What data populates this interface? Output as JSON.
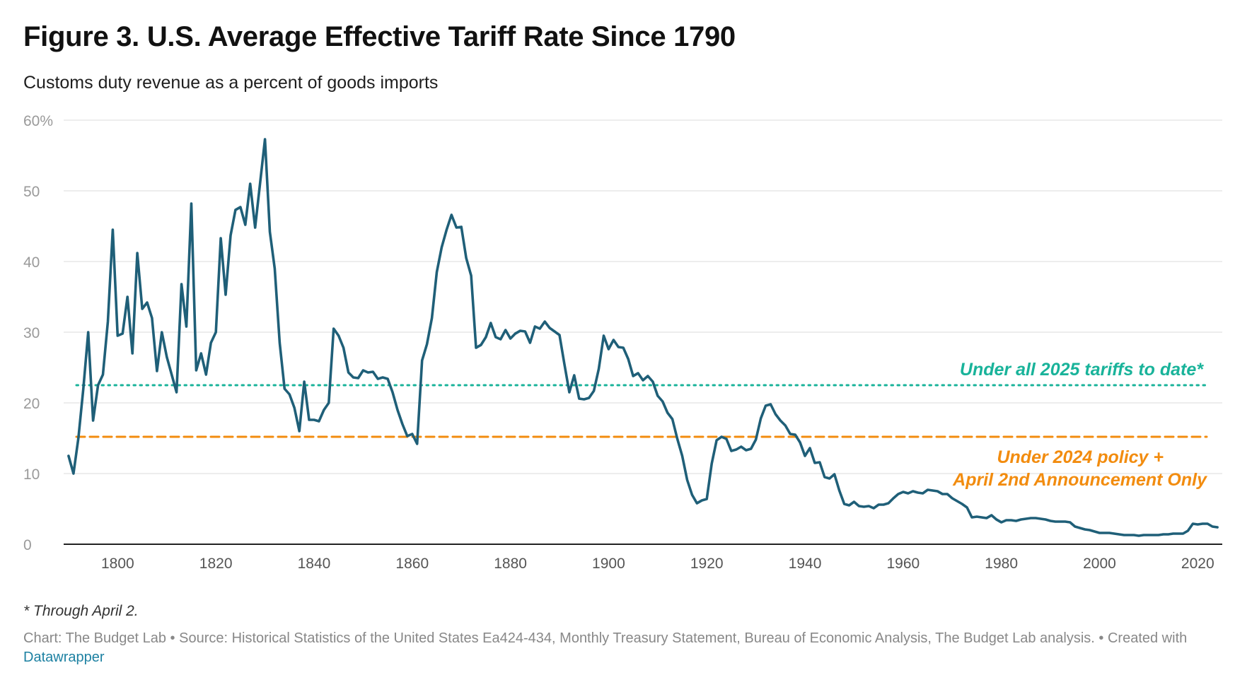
{
  "title": "Figure 3. U.S. Average Effective Tariff Rate Since 1790",
  "subtitle": "Customs duty revenue as a percent of goods imports",
  "note": "* Through April 2.",
  "credit": {
    "text": "Chart: The Budget Lab • Source: Historical Statistics of the United States Ea424-434, Monthly Treasury Statement, Bureau of Economic Analysis, The Budget Lab analysis. • Created with",
    "link": "Datawrapper"
  },
  "colors": {
    "line": "#1f5f78",
    "ref_2025": "#19b39a",
    "ref_2024": "#f28c0f",
    "grid": "#e2e2e2",
    "axis": "#222222"
  },
  "chart_data": {
    "type": "line",
    "xlabel": "",
    "ylabel": "",
    "xlim": [
      1789,
      2025
    ],
    "ylim": [
      0,
      60
    ],
    "x_ticks": [
      "1800",
      "1820",
      "1840",
      "1860",
      "1880",
      "1900",
      "1920",
      "1940",
      "1960",
      "1980",
      "2000",
      "2020"
    ],
    "y_ticks": [
      "0",
      "10",
      "20",
      "30",
      "40",
      "50",
      "60%"
    ],
    "grid": "horizontal",
    "series": [
      {
        "points": [
          [
            1790,
            12.5
          ],
          [
            1791,
            10
          ],
          [
            1792,
            15
          ],
          [
            1793,
            22
          ],
          [
            1794,
            30
          ],
          [
            1795,
            17.5
          ],
          [
            1796,
            22.5
          ],
          [
            1797,
            24
          ],
          [
            1798,
            31.5
          ],
          [
            1799,
            44.5
          ],
          [
            1800,
            29.5
          ],
          [
            1801,
            29.8
          ],
          [
            1802,
            35
          ],
          [
            1803,
            27
          ],
          [
            1804,
            41.2
          ],
          [
            1805,
            33.3
          ],
          [
            1806,
            34.2
          ],
          [
            1807,
            32
          ],
          [
            1808,
            24.5
          ],
          [
            1809,
            30
          ],
          [
            1810,
            26.5
          ],
          [
            1811,
            24
          ],
          [
            1812,
            21.5
          ],
          [
            1813,
            36.8
          ],
          [
            1814,
            30.8
          ],
          [
            1815,
            48.2
          ],
          [
            1816,
            24.6
          ],
          [
            1817,
            27
          ],
          [
            1818,
            24
          ],
          [
            1819,
            28.5
          ],
          [
            1820,
            30
          ],
          [
            1821,
            43.3
          ],
          [
            1822,
            35.3
          ],
          [
            1823,
            43.7
          ],
          [
            1824,
            47.3
          ],
          [
            1825,
            47.7
          ],
          [
            1826,
            45.2
          ],
          [
            1827,
            51
          ],
          [
            1828,
            44.8
          ],
          [
            1829,
            51
          ],
          [
            1830,
            57.3
          ],
          [
            1831,
            44.2
          ],
          [
            1832,
            39
          ],
          [
            1833,
            28.5
          ],
          [
            1834,
            22
          ],
          [
            1835,
            21.2
          ],
          [
            1836,
            19.3
          ],
          [
            1837,
            16
          ],
          [
            1838,
            23
          ],
          [
            1839,
            17.6
          ],
          [
            1840,
            17.6
          ],
          [
            1841,
            17.4
          ],
          [
            1842,
            19
          ],
          [
            1843,
            20
          ],
          [
            1844,
            30.5
          ],
          [
            1845,
            29.5
          ],
          [
            1846,
            27.8
          ],
          [
            1847,
            24.3
          ],
          [
            1848,
            23.6
          ],
          [
            1849,
            23.5
          ],
          [
            1850,
            24.6
          ],
          [
            1851,
            24.3
          ],
          [
            1852,
            24.4
          ],
          [
            1853,
            23.4
          ],
          [
            1854,
            23.6
          ],
          [
            1855,
            23.4
          ],
          [
            1856,
            21.5
          ],
          [
            1857,
            19
          ],
          [
            1858,
            17
          ],
          [
            1859,
            15.3
          ],
          [
            1860,
            15.6
          ],
          [
            1861,
            14.2
          ],
          [
            1862,
            26
          ],
          [
            1863,
            28.3
          ],
          [
            1864,
            32
          ],
          [
            1865,
            38.5
          ],
          [
            1866,
            42
          ],
          [
            1867,
            44.5
          ],
          [
            1868,
            46.6
          ],
          [
            1869,
            44.8
          ],
          [
            1870,
            44.9
          ],
          [
            1871,
            40.5
          ],
          [
            1872,
            38
          ],
          [
            1873,
            27.8
          ],
          [
            1874,
            28.2
          ],
          [
            1875,
            29.3
          ],
          [
            1876,
            31.3
          ],
          [
            1877,
            29.3
          ],
          [
            1878,
            29
          ],
          [
            1879,
            30.3
          ],
          [
            1880,
            29.1
          ],
          [
            1881,
            29.8
          ],
          [
            1882,
            30.2
          ],
          [
            1883,
            30.1
          ],
          [
            1884,
            28.5
          ],
          [
            1885,
            30.8
          ],
          [
            1886,
            30.5
          ],
          [
            1887,
            31.5
          ],
          [
            1888,
            30.6
          ],
          [
            1889,
            30.1
          ],
          [
            1890,
            29.6
          ],
          [
            1891,
            25.5
          ],
          [
            1892,
            21.5
          ],
          [
            1893,
            23.9
          ],
          [
            1894,
            20.6
          ],
          [
            1895,
            20.5
          ],
          [
            1896,
            20.7
          ],
          [
            1897,
            21.7
          ],
          [
            1898,
            24.8
          ],
          [
            1899,
            29.5
          ],
          [
            1900,
            27.6
          ],
          [
            1901,
            28.9
          ],
          [
            1902,
            27.9
          ],
          [
            1903,
            27.8
          ],
          [
            1904,
            26.2
          ],
          [
            1905,
            23.8
          ],
          [
            1906,
            24.2
          ],
          [
            1907,
            23.2
          ],
          [
            1908,
            23.8
          ],
          [
            1909,
            23
          ],
          [
            1910,
            21
          ],
          [
            1911,
            20.2
          ],
          [
            1912,
            18.6
          ],
          [
            1913,
            17.7
          ],
          [
            1914,
            14.9
          ],
          [
            1915,
            12.5
          ],
          [
            1916,
            9.1
          ],
          [
            1917,
            7
          ],
          [
            1918,
            5.8
          ],
          [
            1919,
            6.2
          ],
          [
            1920,
            6.4
          ],
          [
            1921,
            11.4
          ],
          [
            1922,
            14.7
          ],
          [
            1923,
            15.2
          ],
          [
            1924,
            14.9
          ],
          [
            1925,
            13.2
          ],
          [
            1926,
            13.4
          ],
          [
            1927,
            13.8
          ],
          [
            1928,
            13.3
          ],
          [
            1929,
            13.5
          ],
          [
            1930,
            14.8
          ],
          [
            1931,
            17.8
          ],
          [
            1932,
            19.6
          ],
          [
            1933,
            19.8
          ],
          [
            1934,
            18.4
          ],
          [
            1935,
            17.5
          ],
          [
            1936,
            16.8
          ],
          [
            1937,
            15.6
          ],
          [
            1938,
            15.5
          ],
          [
            1939,
            14.4
          ],
          [
            1940,
            12.5
          ],
          [
            1941,
            13.6
          ],
          [
            1942,
            11.5
          ],
          [
            1943,
            11.6
          ],
          [
            1944,
            9.5
          ],
          [
            1945,
            9.3
          ],
          [
            1946,
            9.9
          ],
          [
            1947,
            7.6
          ],
          [
            1948,
            5.7
          ],
          [
            1949,
            5.5
          ],
          [
            1950,
            6
          ],
          [
            1951,
            5.4
          ],
          [
            1952,
            5.3
          ],
          [
            1953,
            5.4
          ],
          [
            1954,
            5.1
          ],
          [
            1955,
            5.6
          ],
          [
            1956,
            5.6
          ],
          [
            1957,
            5.8
          ],
          [
            1958,
            6.5
          ],
          [
            1959,
            7.1
          ],
          [
            1960,
            7.4
          ],
          [
            1961,
            7.2
          ],
          [
            1962,
            7.5
          ],
          [
            1963,
            7.3
          ],
          [
            1964,
            7.2
          ],
          [
            1965,
            7.7
          ],
          [
            1966,
            7.6
          ],
          [
            1967,
            7.5
          ],
          [
            1968,
            7.1
          ],
          [
            1969,
            7.1
          ],
          [
            1970,
            6.5
          ],
          [
            1971,
            6.1
          ],
          [
            1972,
            5.7
          ],
          [
            1973,
            5.2
          ],
          [
            1974,
            3.8
          ],
          [
            1975,
            3.9
          ],
          [
            1976,
            3.8
          ],
          [
            1977,
            3.7
          ],
          [
            1978,
            4.1
          ],
          [
            1979,
            3.5
          ],
          [
            1980,
            3.1
          ],
          [
            1981,
            3.4
          ],
          [
            1982,
            3.4
          ],
          [
            1983,
            3.3
          ],
          [
            1984,
            3.5
          ],
          [
            1985,
            3.6
          ],
          [
            1986,
            3.7
          ],
          [
            1987,
            3.7
          ],
          [
            1988,
            3.6
          ],
          [
            1989,
            3.5
          ],
          [
            1990,
            3.3
          ],
          [
            1991,
            3.2
          ],
          [
            1992,
            3.2
          ],
          [
            1993,
            3.2
          ],
          [
            1994,
            3.1
          ],
          [
            1995,
            2.5
          ],
          [
            1996,
            2.3
          ],
          [
            1997,
            2.1
          ],
          [
            1998,
            2
          ],
          [
            1999,
            1.8
          ],
          [
            2000,
            1.6
          ],
          [
            2001,
            1.6
          ],
          [
            2002,
            1.6
          ],
          [
            2003,
            1.5
          ],
          [
            2004,
            1.4
          ],
          [
            2005,
            1.3
          ],
          [
            2006,
            1.3
          ],
          [
            2007,
            1.3
          ],
          [
            2008,
            1.2
          ],
          [
            2009,
            1.3
          ],
          [
            2010,
            1.3
          ],
          [
            2011,
            1.3
          ],
          [
            2012,
            1.3
          ],
          [
            2013,
            1.4
          ],
          [
            2014,
            1.4
          ],
          [
            2015,
            1.5
          ],
          [
            2016,
            1.5
          ],
          [
            2017,
            1.5
          ],
          [
            2018,
            1.9
          ],
          [
            2019,
            2.9
          ],
          [
            2020,
            2.8
          ],
          [
            2021,
            2.9
          ],
          [
            2022,
            2.9
          ],
          [
            2023,
            2.5
          ],
          [
            2024,
            2.4
          ]
        ]
      }
    ],
    "reference_lines": [
      {
        "value": 22.5,
        "style": "dotted",
        "color": "#19b39a",
        "label": [
          "Under all 2025 tariffs to date*"
        ]
      },
      {
        "value": 15.2,
        "style": "dashed",
        "color": "#f28c0f",
        "label": [
          "Under 2024 policy +",
          "April 2nd Announcement Only"
        ]
      }
    ]
  }
}
